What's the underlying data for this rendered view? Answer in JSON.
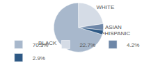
{
  "chart_data": {
    "type": "pie",
    "categories": [
      "BLACK",
      "WHITE",
      "ASIAN",
      "HISPANIC"
    ],
    "values": [
      70.3,
      22.7,
      4.2,
      2.9
    ],
    "value_labels": [
      "70.3%",
      "22.7%",
      "4.2%",
      "2.9%"
    ],
    "colors": [
      "#a8b8cc",
      "#d5dce6",
      "#6e87a8",
      "#2e5985"
    ],
    "legend": "bottom"
  }
}
